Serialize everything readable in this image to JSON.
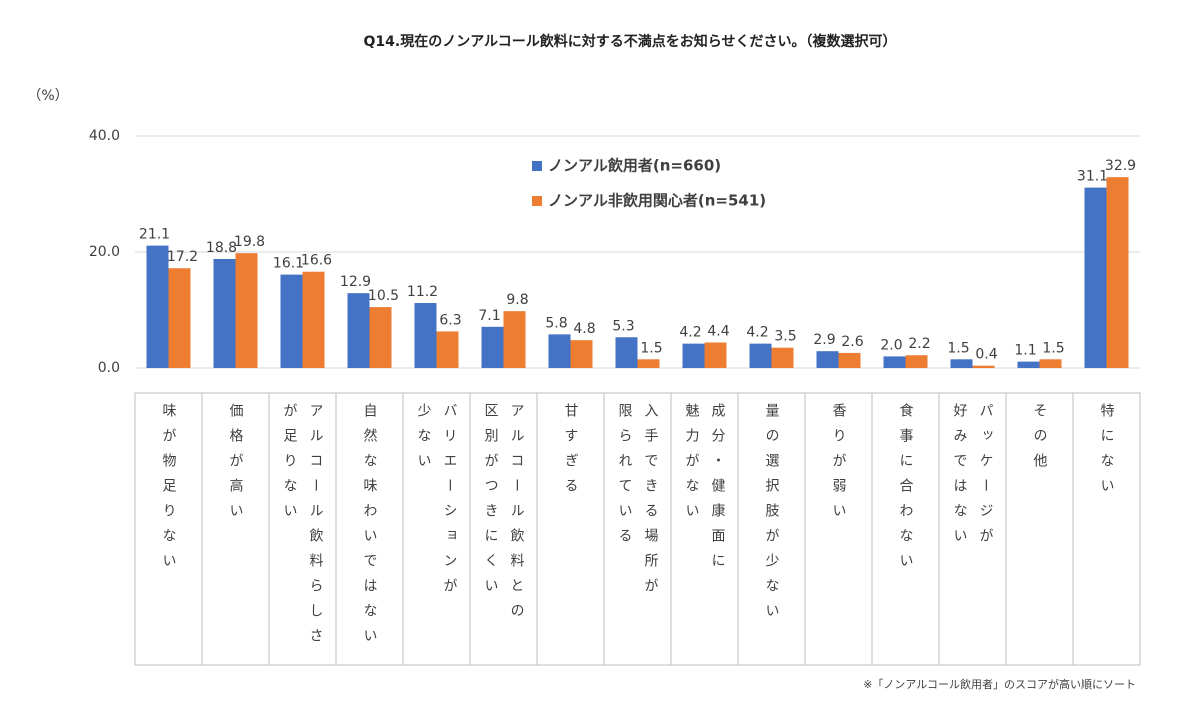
{
  "chart_data": {
    "type": "bar",
    "title": "Q14.現在のノンアルコール飲料に対する不満点をお知らせください。（複数選択可）",
    "y_unit": "（%）",
    "footnote": "※「ノンアルコール飲用者」のスコアが高い順にソート",
    "categories": [
      "味が物足りない",
      "価格が高い",
      "アルコール飲料らしさ\nが足りない",
      "自然な味わいではない",
      "バリエーションが\n少ない",
      "アルコール飲料との\n区別がつきにくい",
      "甘すぎる",
      "入手できる場所が\n限られている",
      "成分・健康面に\n魅力がない",
      "量の選択肢が少ない",
      "香りが弱い",
      "食事に合わない",
      "パッケージが\n好みではない",
      "その他",
      "特にない"
    ],
    "series": [
      {
        "name": "ノンアル飲用者(n=660)",
        "color": "#4472c4",
        "values": [
          21.1,
          18.8,
          16.1,
          12.9,
          11.2,
          7.1,
          5.8,
          5.3,
          4.2,
          4.2,
          2.9,
          2.0,
          1.5,
          1.1,
          31.1
        ],
        "value_labels": [
          "21.1",
          "18.8",
          "16.1",
          "12.9",
          "11.2",
          "7.1",
          "5.8",
          "5.3",
          "4.2",
          "4.2",
          "2.9",
          "2.0",
          "1.5",
          "1.1",
          "31.1"
        ]
      },
      {
        "name": "ノンアル非飲用関心者(n=541)",
        "color": "#ed7d31",
        "values": [
          17.2,
          19.8,
          16.6,
          10.5,
          6.3,
          9.8,
          4.8,
          1.5,
          4.4,
          3.5,
          2.6,
          2.2,
          0.4,
          1.5,
          32.9
        ],
        "value_labels": [
          "17.2",
          "19.8",
          "16.6",
          "10.5",
          "6.3",
          "9.8",
          "4.8",
          "1.5",
          "4.4",
          "3.5",
          "2.6",
          "2.2",
          "0.4",
          "1.5",
          "32.9"
        ]
      }
    ],
    "ylim": [
      0,
      40
    ],
    "yticks": [
      {
        "value": 0,
        "label": "0.0"
      },
      {
        "value": 20,
        "label": "20.0"
      },
      {
        "value": 40,
        "label": "40.0"
      }
    ],
    "grid": true
  }
}
